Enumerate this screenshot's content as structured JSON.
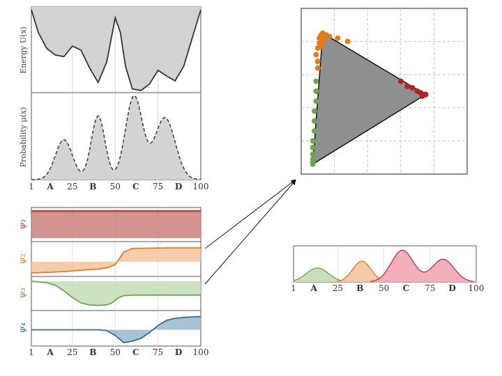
{
  "chart_data": [
    {
      "id": "energy",
      "type": "line",
      "ylabel": "Energy  U(x)",
      "x": [
        1,
        5,
        10,
        15,
        20,
        25,
        30,
        35,
        40,
        45,
        50,
        53,
        56,
        60,
        65,
        70,
        75,
        80,
        85,
        90,
        95,
        100
      ],
      "y": [
        1.0,
        0.72,
        0.52,
        0.44,
        0.42,
        0.55,
        0.5,
        0.28,
        0.1,
        0.35,
        0.9,
        0.72,
        0.3,
        0.02,
        0.0,
        0.08,
        0.25,
        0.18,
        0.12,
        0.3,
        0.65,
        1.0
      ],
      "ylim": [
        0,
        1
      ],
      "fill": "#d3d3d3",
      "line": "#333333"
    },
    {
      "id": "probability",
      "type": "area",
      "ylabel": "Probability  μ(x)",
      "peaks": [
        {
          "center": 20,
          "height": 0.47,
          "width": 5
        },
        {
          "center": 40,
          "height": 0.75,
          "width": 4
        },
        {
          "center": 61,
          "height": 0.98,
          "width": 5
        },
        {
          "center": 79,
          "height": 0.73,
          "width": 6
        }
      ],
      "ylim": [
        0,
        1
      ],
      "fill": "#d3d3d3",
      "line": "#444444"
    },
    {
      "id": "eigenvectors",
      "type": "line",
      "series": [
        {
          "name": "ψ₁",
          "color": "#b5403a",
          "fill": "#c9817c",
          "x": [
            1,
            100
          ],
          "y": [
            1.0,
            1.0
          ],
          "baseline": 0.0
        },
        {
          "name": "ψ₂",
          "color": "#e07b20",
          "fill": "#f4c49c",
          "x": [
            1,
            10,
            20,
            30,
            40,
            45,
            50,
            55,
            60,
            70,
            80,
            90,
            100
          ],
          "y": [
            0.0,
            0.02,
            0.05,
            0.1,
            0.14,
            0.18,
            0.3,
            0.75,
            0.88,
            0.89,
            0.9,
            0.9,
            0.9
          ],
          "baseline": 0.4
        },
        {
          "name": "ψ₃",
          "color": "#6aa84f",
          "fill": "#c4ddb5",
          "x": [
            1,
            10,
            15,
            20,
            25,
            30,
            35,
            40,
            45,
            48,
            52,
            55,
            60,
            70,
            80,
            90,
            100
          ],
          "y": [
            0.95,
            0.9,
            0.8,
            0.6,
            0.35,
            0.15,
            0.08,
            0.06,
            0.08,
            0.15,
            0.35,
            0.42,
            0.44,
            0.44,
            0.44,
            0.44,
            0.44
          ],
          "baseline": 0.95
        },
        {
          "name": "ψ₄",
          "color": "#2e6f98",
          "fill": "#9bb8cc",
          "x": [
            1,
            10,
            20,
            30,
            40,
            45,
            50,
            55,
            60,
            65,
            70,
            75,
            80,
            85,
            90,
            95,
            100
          ],
          "y": [
            0.45,
            0.45,
            0.45,
            0.45,
            0.45,
            0.42,
            0.25,
            0.0,
            0.05,
            0.15,
            0.35,
            0.6,
            0.78,
            0.85,
            0.88,
            0.9,
            0.91
          ],
          "baseline": 0.45
        }
      ]
    },
    {
      "id": "simplex",
      "type": "scatter",
      "vertices": [
        [
          0.13,
          0.85
        ],
        [
          0.07,
          0.06
        ],
        [
          0.75,
          0.48
        ]
      ],
      "triangle_fill": "#8f8f8f",
      "series": [
        {
          "color": "#e07b20",
          "points": [
            [
              0.13,
              0.85
            ],
            [
              0.12,
              0.84
            ],
            [
              0.15,
              0.84
            ],
            [
              0.11,
              0.82
            ],
            [
              0.14,
              0.82
            ],
            [
              0.11,
              0.79
            ],
            [
              0.13,
              0.8
            ],
            [
              0.1,
              0.76
            ],
            [
              0.12,
              0.77
            ],
            [
              0.09,
              0.72
            ],
            [
              0.1,
              0.68
            ],
            [
              0.1,
              0.64
            ],
            [
              0.17,
              0.83
            ],
            [
              0.22,
              0.82
            ],
            [
              0.28,
              0.8
            ]
          ]
        },
        {
          "color": "#6aa84f",
          "points": [
            [
              0.09,
              0.56
            ],
            [
              0.09,
              0.5
            ],
            [
              0.09,
              0.44
            ],
            [
              0.08,
              0.38
            ],
            [
              0.08,
              0.32
            ],
            [
              0.08,
              0.26
            ],
            [
              0.07,
              0.2
            ],
            [
              0.07,
              0.16
            ],
            [
              0.07,
              0.12
            ],
            [
              0.07,
              0.09
            ],
            [
              0.07,
              0.07
            ],
            [
              0.07,
              0.06
            ]
          ]
        },
        {
          "color": "#b22222",
          "points": [
            [
              0.6,
              0.56
            ],
            [
              0.64,
              0.53
            ],
            [
              0.67,
              0.52
            ],
            [
              0.7,
              0.5
            ],
            [
              0.72,
              0.49
            ],
            [
              0.74,
              0.48
            ],
            [
              0.75,
              0.48
            ],
            [
              0.73,
              0.47
            ]
          ]
        }
      ],
      "grid": true
    },
    {
      "id": "cluster-densities",
      "type": "area",
      "series": [
        {
          "color": "#6aa84f",
          "fill": "#c4ddb5",
          "peaks": [
            {
              "center": 14,
              "height": 0.42,
              "width": 6
            }
          ]
        },
        {
          "color": "#e07b20",
          "fill": "#f4c49c",
          "peaks": [
            {
              "center": 38,
              "height": 0.62,
              "width": 5
            }
          ]
        },
        {
          "color": "#c0394e",
          "fill": "#f2a7b3",
          "peaks": [
            {
              "center": 60,
              "height": 0.95,
              "width": 6
            },
            {
              "center": 82,
              "height": 0.68,
              "width": 6
            }
          ]
        }
      ],
      "ylim": [
        0,
        1
      ]
    }
  ],
  "x_axis": {
    "ticks": [
      {
        "v": 1,
        "label": "1",
        "bold": false
      },
      {
        "v": 12,
        "label": "A",
        "bold": true
      },
      {
        "v": 25,
        "label": "25",
        "bold": false
      },
      {
        "v": 37,
        "label": "B",
        "bold": true
      },
      {
        "v": 50,
        "label": "50",
        "bold": false
      },
      {
        "v": 62,
        "label": "C",
        "bold": true
      },
      {
        "v": 75,
        "label": "75",
        "bold": false
      },
      {
        "v": 87,
        "label": "D",
        "bold": true
      },
      {
        "v": 100,
        "label": "100",
        "bold": false
      }
    ],
    "gridlines": [
      25,
      50,
      75
    ]
  }
}
